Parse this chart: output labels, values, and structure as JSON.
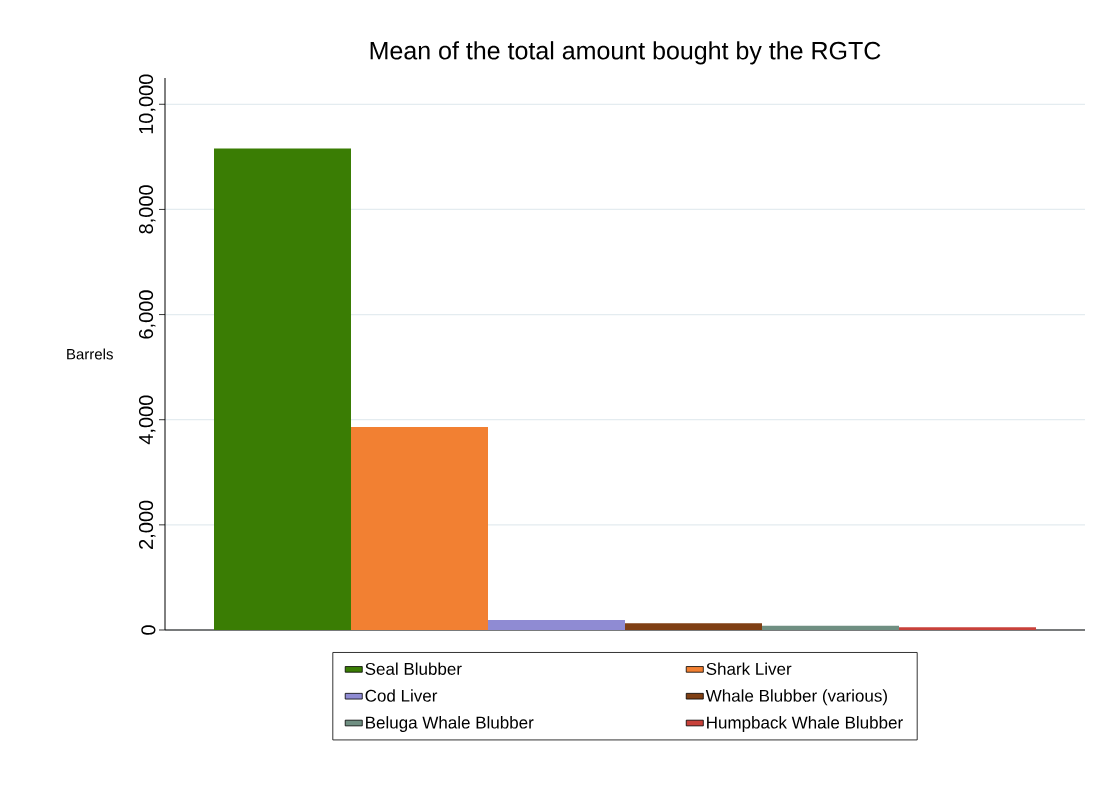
{
  "chart_data": {
    "type": "bar",
    "title": "Mean of the total amount bought by the RGTC",
    "ylabel": "Barrels",
    "categories": [
      null
    ],
    "series": [
      {
        "name": "Seal Blubber",
        "color": "#3a7d04",
        "values": [
          9160
        ]
      },
      {
        "name": "Shark Liver",
        "color": "#f28032",
        "values": [
          3860
        ]
      },
      {
        "name": "Cod Liver",
        "color": "#8f8bd3",
        "values": [
          190
        ]
      },
      {
        "name": "Whale Blubber (various)",
        "color": "#7f3f14",
        "values": [
          130
        ]
      },
      {
        "name": "Beluga Whale Blubber",
        "color": "#6f8f82",
        "values": [
          80
        ]
      },
      {
        "name": "Humpback Whale Blubber",
        "color": "#c8413a",
        "values": [
          50
        ]
      }
    ],
    "ylim": [
      0,
      10500
    ],
    "yticks": [
      0,
      {
        "value": 2000,
        "label": "2,000"
      },
      {
        "value": 4000,
        "label": "4,000"
      },
      {
        "value": 6000,
        "label": "6,000"
      },
      {
        "value": 8000,
        "label": "8,000"
      },
      {
        "value": 10000,
        "label": "10,000"
      }
    ],
    "grid": "y",
    "legend": "bottom"
  }
}
